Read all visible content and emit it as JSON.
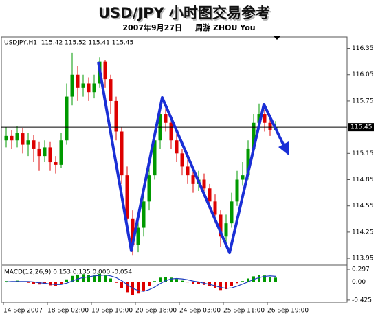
{
  "chart_data": [
    {
      "type": "candlestick",
      "title": "USD/JPY 小时图交易参考",
      "subtitle": "2007年9月27日     周游 ZHOU You",
      "header": "USDJPY,H1  115.42 115.52 115.41 115.45",
      "categories": [
        "14 Sep 2007",
        null,
        null,
        null,
        null,
        null,
        null,
        null,
        "18 Sep 02:00",
        null,
        null,
        null,
        null,
        null,
        null,
        null,
        "19 Sep 10:00",
        null,
        null,
        null,
        null,
        null,
        null,
        null,
        "20 Sep 18:00",
        null,
        null,
        null,
        null,
        null,
        null,
        null,
        "24 Sep 03:00",
        null,
        null,
        null,
        null,
        null,
        null,
        null,
        "25 Sep 11:00",
        null,
        null,
        null,
        null,
        null,
        null,
        null,
        "26 Sep 19:00",
        null
      ],
      "open": [
        115.3,
        115.35,
        115.3,
        115.38,
        115.25,
        115.3,
        115.2,
        115.12,
        115.22,
        115.05,
        115.02,
        115.3,
        115.8,
        116.05,
        115.9,
        115.95,
        115.85,
        115.95,
        116.2,
        116.0,
        115.75,
        115.4,
        114.9,
        114.4,
        114.1,
        114.3,
        114.6,
        114.9,
        115.3,
        115.6,
        115.5,
        115.3,
        115.15,
        115.0,
        114.9,
        114.8,
        114.85,
        114.75,
        114.6,
        114.45,
        114.2,
        114.35,
        114.6,
        114.85,
        114.9,
        115.2,
        115.5,
        115.6,
        115.5,
        115.42
      ],
      "high": [
        115.45,
        115.42,
        115.46,
        115.44,
        115.38,
        115.36,
        115.28,
        115.3,
        115.28,
        115.12,
        115.38,
        115.95,
        116.3,
        116.15,
        116.05,
        116.02,
        116.05,
        116.25,
        116.22,
        116.05,
        115.8,
        115.45,
        115.0,
        114.5,
        114.4,
        114.7,
        115.0,
        115.4,
        115.7,
        115.68,
        115.55,
        115.38,
        115.2,
        115.08,
        114.98,
        114.95,
        114.92,
        114.8,
        114.68,
        114.5,
        114.45,
        114.7,
        114.95,
        115.05,
        115.3,
        115.6,
        115.72,
        115.65,
        115.55,
        115.52
      ],
      "low": [
        115.22,
        115.2,
        115.22,
        115.15,
        115.12,
        115.05,
        114.95,
        115.05,
        114.95,
        114.92,
        114.98,
        115.25,
        115.7,
        115.75,
        115.8,
        115.75,
        115.78,
        115.9,
        115.9,
        115.6,
        115.3,
        114.8,
        114.3,
        113.98,
        114.02,
        114.2,
        114.5,
        114.85,
        115.2,
        115.4,
        115.2,
        115.05,
        114.9,
        114.8,
        114.7,
        114.72,
        114.65,
        114.5,
        114.35,
        114.08,
        114.1,
        114.3,
        114.55,
        114.78,
        114.85,
        115.15,
        115.45,
        115.4,
        115.35,
        115.41
      ],
      "close": [
        115.35,
        115.3,
        115.38,
        115.25,
        115.3,
        115.2,
        115.12,
        115.22,
        115.05,
        115.02,
        115.3,
        115.8,
        116.05,
        115.9,
        115.95,
        115.85,
        115.95,
        116.2,
        116.0,
        115.75,
        115.4,
        114.9,
        114.4,
        114.1,
        114.3,
        114.6,
        114.9,
        115.3,
        115.6,
        115.5,
        115.3,
        115.15,
        115.0,
        114.9,
        114.8,
        114.85,
        114.75,
        114.6,
        114.45,
        114.2,
        114.35,
        114.6,
        114.85,
        114.9,
        115.2,
        115.5,
        115.6,
        115.5,
        115.42,
        115.45
      ],
      "up_color": "#009900",
      "down_color": "#dd0000",
      "last_price": 115.45,
      "ylim": [
        113.88,
        116.48
      ],
      "yticks": [
        116.35,
        116.05,
        115.75,
        115.15,
        114.85,
        114.55,
        114.25,
        113.95
      ]
    },
    {
      "type": "macd",
      "label": "MACD(12,26,9) 0.153 0.135 0.000 -0.054",
      "values": [
        0.02,
        0.01,
        0.03,
        0.0,
        -0.02,
        -0.04,
        -0.06,
        -0.05,
        -0.08,
        -0.09,
        -0.04,
        0.06,
        0.14,
        0.17,
        0.18,
        0.16,
        0.15,
        0.19,
        0.15,
        0.08,
        -0.02,
        -0.14,
        -0.24,
        -0.3,
        -0.27,
        -0.2,
        -0.1,
        0.02,
        0.1,
        0.12,
        0.1,
        0.07,
        0.03,
        -0.01,
        -0.04,
        -0.05,
        -0.07,
        -0.1,
        -0.14,
        -0.19,
        -0.17,
        -0.1,
        -0.03,
        0.02,
        0.08,
        0.13,
        0.16,
        0.15,
        0.12,
        0.1
      ],
      "positive_color": "#009900",
      "negative_color": "#dd0000",
      "series": [
        {
          "color": "#1f3fbf",
          "values": [
            0.0,
            0.01,
            0.01,
            0.01,
            0.01,
            0.0,
            -0.02,
            -0.03,
            -0.05,
            -0.06,
            -0.06,
            -0.03,
            0.02,
            0.07,
            0.1,
            0.12,
            0.14,
            0.15,
            0.16,
            0.14,
            0.1,
            0.03,
            -0.06,
            -0.15,
            -0.2,
            -0.22,
            -0.18,
            -0.12,
            -0.04,
            0.03,
            0.07,
            0.08,
            0.07,
            0.05,
            0.02,
            0.0,
            -0.03,
            -0.06,
            -0.09,
            -0.13,
            -0.15,
            -0.14,
            -0.1,
            -0.05,
            0.0,
            0.06,
            0.1,
            0.13,
            0.14,
            0.13
          ]
        }
      ],
      "ylim": [
        -0.475,
        0.378
      ],
      "yticks": [
        0.297,
        {
          "value": 0,
          "label": "0.00"
        },
        -0.425
      ]
    }
  ]
}
